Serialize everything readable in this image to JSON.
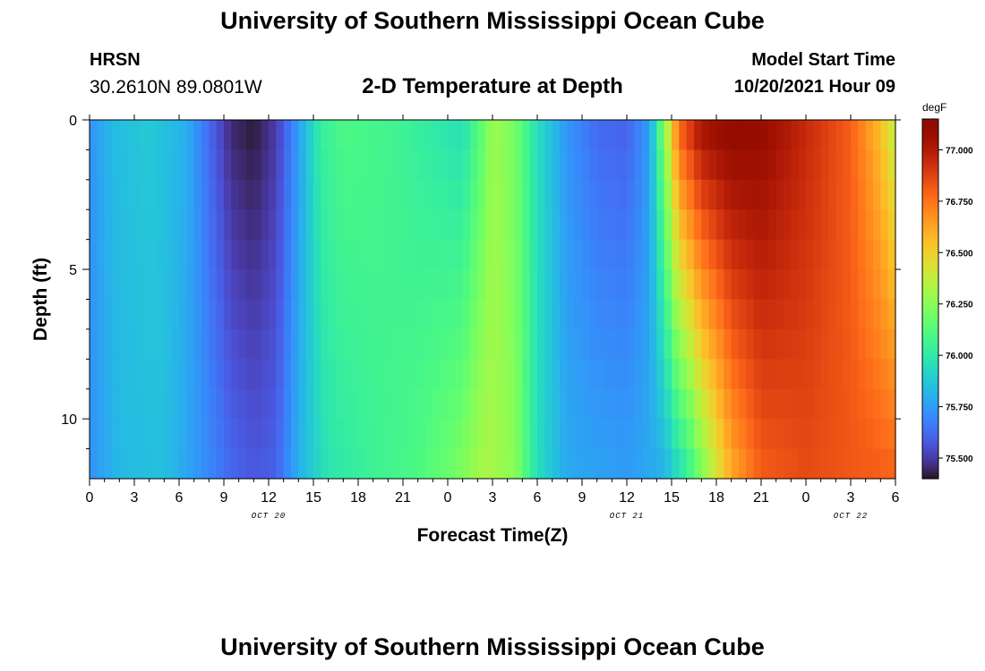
{
  "header": {
    "title": "University of Southern Mississippi Ocean Cube",
    "station": "HRSN",
    "coordinates": "30.2610N  89.0801W",
    "subtitle": "2-D Temperature at Depth",
    "model_start_label": "Model Start Time",
    "model_start_value": "10/20/2021 Hour 09"
  },
  "footer": {
    "title": "University of Southern Mississippi Ocean Cube"
  },
  "chart_data": {
    "type": "heatmap",
    "title": "2-D Temperature at Depth",
    "xlabel": "Forecast Time(Z)",
    "ylabel": "Depth (ft)",
    "x_tick_labels": [
      "0",
      "3",
      "6",
      "9",
      "12",
      "15",
      "18",
      "21",
      "0",
      "3",
      "6",
      "9",
      "12",
      "15",
      "18",
      "21",
      "0",
      "3",
      "6"
    ],
    "x_range_hours": [
      0,
      54
    ],
    "date_labels": [
      {
        "text": "OCT 20",
        "at_hour": 12
      },
      {
        "text": "OCT 21",
        "at_hour": 36
      },
      {
        "text": "OCT 22",
        "at_hour": 51
      }
    ],
    "y_ticks": [
      0,
      5,
      10
    ],
    "y_range": [
      0,
      12
    ],
    "y_inverted": true,
    "colorbar": {
      "unit": "degF",
      "ticks": [
        75.5,
        75.75,
        76.0,
        76.25,
        76.5,
        76.75,
        77.0
      ],
      "tick_labels": [
        "75.500",
        "75.750",
        "76.000",
        "76.250",
        "76.500",
        "76.750",
        "77.000"
      ],
      "range": [
        75.4,
        77.15
      ],
      "colormap": "turbo"
    },
    "surface_temperature_by_hour": [
      {
        "hour": 0,
        "value": 75.72
      },
      {
        "hour": 1.5,
        "value": 75.83
      },
      {
        "hour": 4,
        "value": 75.88
      },
      {
        "hour": 6.5,
        "value": 75.8
      },
      {
        "hour": 8,
        "value": 75.62
      },
      {
        "hour": 9.5,
        "value": 75.45
      },
      {
        "hour": 11,
        "value": 75.41
      },
      {
        "hour": 12.5,
        "value": 75.5
      },
      {
        "hour": 14,
        "value": 75.75
      },
      {
        "hour": 15.5,
        "value": 76.03
      },
      {
        "hour": 17,
        "value": 76.1
      },
      {
        "hour": 19,
        "value": 76.08
      },
      {
        "hour": 21,
        "value": 76.05
      },
      {
        "hour": 23,
        "value": 76.0
      },
      {
        "hour": 25,
        "value": 75.95
      },
      {
        "hour": 26.5,
        "value": 76.18
      },
      {
        "hour": 27,
        "value": 76.3
      },
      {
        "hour": 28.5,
        "value": 76.2
      },
      {
        "hour": 30,
        "value": 75.95
      },
      {
        "hour": 32,
        "value": 75.73
      },
      {
        "hour": 34,
        "value": 75.62
      },
      {
        "hour": 36,
        "value": 75.6
      },
      {
        "hour": 37.5,
        "value": 75.75
      },
      {
        "hour": 38.5,
        "value": 76.25
      },
      {
        "hour": 39.5,
        "value": 76.8
      },
      {
        "hour": 41,
        "value": 77.05
      },
      {
        "hour": 43,
        "value": 77.12
      },
      {
        "hour": 45,
        "value": 77.1
      },
      {
        "hour": 48,
        "value": 76.95
      },
      {
        "hour": 51,
        "value": 76.8
      },
      {
        "hour": 53,
        "value": 76.55
      },
      {
        "hour": 54,
        "value": 76.35
      }
    ],
    "bottom_temperature_by_hour": [
      {
        "hour": 0,
        "value": 75.72
      },
      {
        "hour": 2,
        "value": 75.83
      },
      {
        "hour": 5,
        "value": 75.85
      },
      {
        "hour": 8,
        "value": 75.7
      },
      {
        "hour": 9.5,
        "value": 75.62
      },
      {
        "hour": 11,
        "value": 75.58
      },
      {
        "hour": 12.5,
        "value": 75.6
      },
      {
        "hour": 14,
        "value": 75.8
      },
      {
        "hour": 16,
        "value": 75.98
      },
      {
        "hour": 19,
        "value": 76.05
      },
      {
        "hour": 22,
        "value": 76.1
      },
      {
        "hour": 24.5,
        "value": 76.2
      },
      {
        "hour": 26.5,
        "value": 76.33
      },
      {
        "hour": 28.5,
        "value": 76.25
      },
      {
        "hour": 30,
        "value": 75.95
      },
      {
        "hour": 32,
        "value": 75.78
      },
      {
        "hour": 36,
        "value": 75.75
      },
      {
        "hour": 38.5,
        "value": 75.8
      },
      {
        "hour": 40,
        "value": 76.0
      },
      {
        "hour": 41.5,
        "value": 76.3
      },
      {
        "hour": 43,
        "value": 76.6
      },
      {
        "hour": 45,
        "value": 76.8
      },
      {
        "hour": 48,
        "value": 76.85
      },
      {
        "hour": 51,
        "value": 76.82
      },
      {
        "hour": 54,
        "value": 76.8
      }
    ]
  }
}
